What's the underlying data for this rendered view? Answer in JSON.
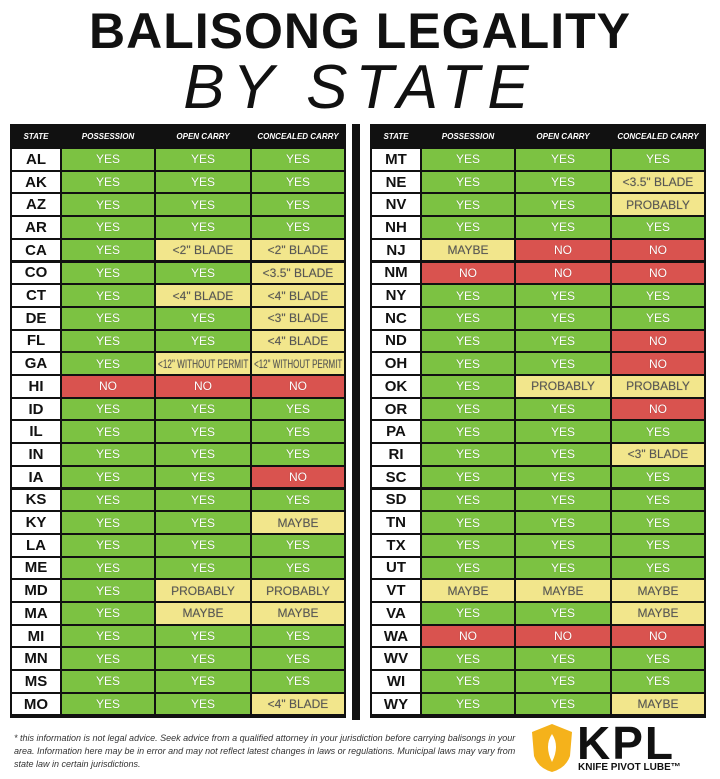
{
  "title": "BALISONG LEGALITY",
  "subtitle": "BY STATE",
  "cell_colors": {
    "YES": "#7cc242",
    "NO": "#d9534f",
    "MAYBE": "#f2e68c",
    "PROBABLY": "#f2e68c",
    "<2\" BLADE": "#f2e68c",
    "<3\" BLADE": "#f2e68c",
    "<3.5\" BLADE": "#f2e68c",
    "<4\" BLADE": "#f2e68c",
    "<12\" WITHOUT PERMIT": "#f2e68c"
  },
  "tables": [
    {
      "header": [
        "STATE",
        "POSSESSION",
        "OPEN CARRY",
        "CONCEALED CARRY"
      ],
      "rows": [
        [
          "AL",
          "YES",
          "YES",
          "YES"
        ],
        [
          "AK",
          "YES",
          "YES",
          "YES"
        ],
        [
          "AZ",
          "YES",
          "YES",
          "YES"
        ],
        [
          "AR",
          "YES",
          "YES",
          "YES"
        ],
        [
          "CA",
          "YES",
          "<2\" BLADE",
          "<2\" BLADE"
        ],
        [
          "CO",
          "YES",
          "YES",
          "<3.5\" BLADE"
        ],
        [
          "CT",
          "YES",
          "<4\" BLADE",
          "<4\" BLADE"
        ],
        [
          "DE",
          "YES",
          "YES",
          "<3\" BLADE"
        ],
        [
          "FL",
          "YES",
          "YES",
          "<4\" BLADE"
        ],
        [
          "GA",
          "YES",
          "<12\" WITHOUT PERMIT",
          "<12\" WITHOUT PERMIT"
        ],
        [
          "HI",
          "NO",
          "NO",
          "NO"
        ],
        [
          "ID",
          "YES",
          "YES",
          "YES"
        ],
        [
          "IL",
          "YES",
          "YES",
          "YES"
        ],
        [
          "IN",
          "YES",
          "YES",
          "YES"
        ],
        [
          "IA",
          "YES",
          "YES",
          "NO"
        ],
        [
          "KS",
          "YES",
          "YES",
          "YES"
        ],
        [
          "KY",
          "YES",
          "YES",
          "MAYBE"
        ],
        [
          "LA",
          "YES",
          "YES",
          "YES"
        ],
        [
          "ME",
          "YES",
          "YES",
          "YES"
        ],
        [
          "MD",
          "YES",
          "PROBABLY",
          "PROBABLY"
        ],
        [
          "MA",
          "YES",
          "MAYBE",
          "MAYBE"
        ],
        [
          "MI",
          "YES",
          "YES",
          "YES"
        ],
        [
          "MN",
          "YES",
          "YES",
          "YES"
        ],
        [
          "MS",
          "YES",
          "YES",
          "YES"
        ],
        [
          "MO",
          "YES",
          "YES",
          "<4\" BLADE"
        ]
      ]
    },
    {
      "header": [
        "STATE",
        "POSSESSION",
        "OPEN CARRY",
        "CONCEALED CARRY"
      ],
      "rows": [
        [
          "MT",
          "YES",
          "YES",
          "YES"
        ],
        [
          "NE",
          "YES",
          "YES",
          "<3.5\" BLADE"
        ],
        [
          "NV",
          "YES",
          "YES",
          "PROBABLY"
        ],
        [
          "NH",
          "YES",
          "YES",
          "YES"
        ],
        [
          "NJ",
          "MAYBE",
          "NO",
          "NO"
        ],
        [
          "NM",
          "NO",
          "NO",
          "NO"
        ],
        [
          "NY",
          "YES",
          "YES",
          "YES"
        ],
        [
          "NC",
          "YES",
          "YES",
          "YES"
        ],
        [
          "ND",
          "YES",
          "YES",
          "NO"
        ],
        [
          "OH",
          "YES",
          "YES",
          "NO"
        ],
        [
          "OK",
          "YES",
          "PROBABLY",
          "PROBABLY"
        ],
        [
          "OR",
          "YES",
          "YES",
          "NO"
        ],
        [
          "PA",
          "YES",
          "YES",
          "YES"
        ],
        [
          "RI",
          "YES",
          "YES",
          "<3\" BLADE"
        ],
        [
          "SC",
          "YES",
          "YES",
          "YES"
        ],
        [
          "SD",
          "YES",
          "YES",
          "YES"
        ],
        [
          "TN",
          "YES",
          "YES",
          "YES"
        ],
        [
          "TX",
          "YES",
          "YES",
          "YES"
        ],
        [
          "UT",
          "YES",
          "YES",
          "YES"
        ],
        [
          "VT",
          "MAYBE",
          "MAYBE",
          "MAYBE"
        ],
        [
          "VA",
          "YES",
          "YES",
          "MAYBE"
        ],
        [
          "WA",
          "NO",
          "NO",
          "NO"
        ],
        [
          "WV",
          "YES",
          "YES",
          "YES"
        ],
        [
          "WI",
          "YES",
          "YES",
          "YES"
        ],
        [
          "WY",
          "YES",
          "YES",
          "MAYBE"
        ]
      ]
    }
  ],
  "disclaimer": "* this information is not legal advice. Seek advice from a qualified attorney in your jurisdiction before carrying balisongs in your area. Information here may be in error and may not reflect latest changes in laws or regulations. Municipal laws may vary from state law in certain jurisdictions.",
  "logo": {
    "name": "KPL",
    "tagline": "KNIFE PIVOT LUBE™"
  }
}
